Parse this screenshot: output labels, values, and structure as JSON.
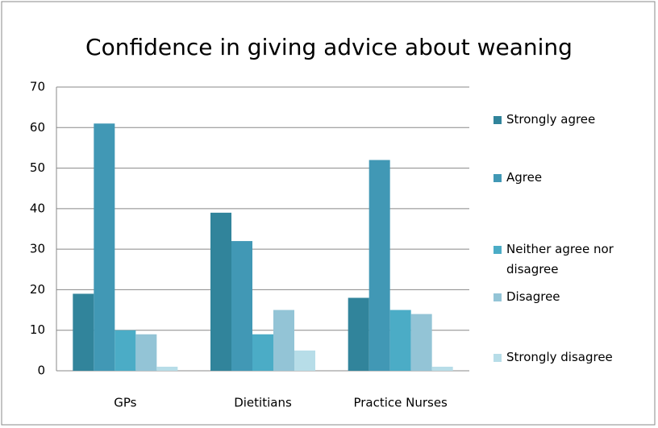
{
  "chart_data": {
    "type": "bar",
    "title": "Confidence in giving advice about weaning",
    "categories": [
      "GPs",
      "Dietitians",
      "Practice Nurses"
    ],
    "series": [
      {
        "name": "Strongly agree",
        "color": "#31849b",
        "values": [
          19,
          39,
          18
        ]
      },
      {
        "name": "Agree",
        "color": "#4198b5",
        "values": [
          61,
          32,
          52
        ]
      },
      {
        "name": "Neither agree nor disagree",
        "color": "#4bacc6",
        "values": [
          10,
          9,
          15
        ]
      },
      {
        "name": "Disagree",
        "color": "#93c4d6",
        "values": [
          9,
          15,
          14
        ]
      },
      {
        "name": "Strongly disagree",
        "color": "#b7dde8",
        "values": [
          1,
          5,
          1
        ]
      }
    ],
    "ylim": [
      0,
      70
    ],
    "yticks": [
      0,
      10,
      20,
      30,
      40,
      50,
      60,
      70
    ],
    "grid": true,
    "legend": "right"
  }
}
